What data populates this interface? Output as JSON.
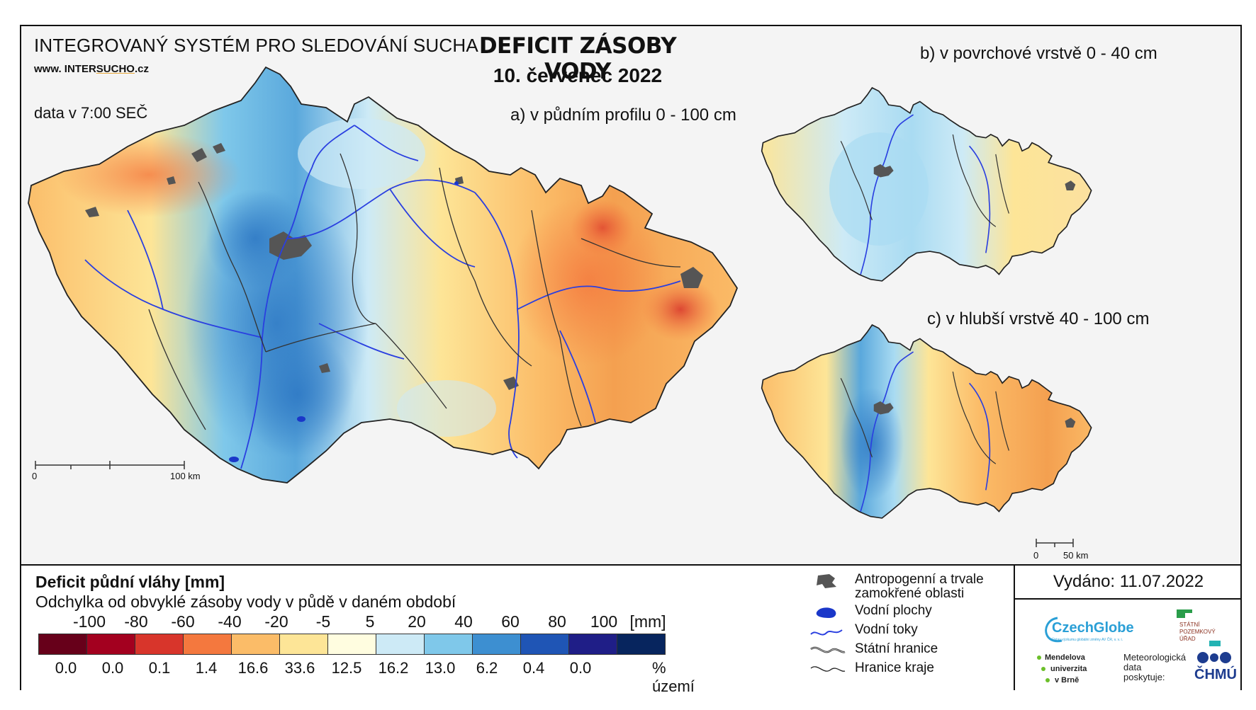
{
  "header": {
    "system_title": "INTEGROVANÝ SYSTÉM PRO SLEDOVÁNÍ SUCHA",
    "website_prefix": "www. INTER",
    "website_highlight": "SUCHO",
    "website_suffix": ".cz",
    "data_time": "data v 7:00 SEČ",
    "main_title": "DEFICIT ZÁSOBY VODY",
    "main_date": "10. červenec 2022"
  },
  "maps": {
    "a_title": "a) v půdním profilu 0 - 100 cm",
    "b_title": "b) v povrchové vrstvě 0 - 40 cm",
    "c_title": "c) v hlubší vrstvě 40 - 100 cm",
    "scale_main": {
      "start": "0",
      "end": "100 km"
    },
    "scale_small": {
      "start": "0",
      "end": "50 km"
    }
  },
  "legend": {
    "title": "Deficit půdní vláhy  [mm]",
    "subtitle": "Odchylka od obvyklé zásoby vody v půdě v daném období",
    "ticks": [
      "-100",
      "-80",
      "-60",
      "-40",
      "-20",
      "-5",
      "5",
      "20",
      "40",
      "60",
      "80",
      "100"
    ],
    "unit": "[mm]",
    "colors": [
      "#67001a",
      "#a3001f",
      "#d8352b",
      "#f4783e",
      "#fbbc68",
      "#fde597",
      "#fffde0",
      "#cdeaf6",
      "#7fc8ea",
      "#3d8fd1",
      "#1f55b5",
      "#1f1e87",
      "#07255e"
    ],
    "percent": [
      "0.0",
      "0.0",
      "0.1",
      "1.4",
      "16.6",
      "33.6",
      "12.5",
      "16.2",
      "13.0",
      "6.2",
      "0.4",
      "0.0"
    ],
    "percent_unit": "% území"
  },
  "symbols": {
    "items": [
      {
        "icon": "urban-area-icon",
        "label": "Antropogenní a trvale zamokřené oblasti"
      },
      {
        "icon": "water-body-icon",
        "label": "Vodní plochy"
      },
      {
        "icon": "river-icon",
        "label": "Vodní toky"
      },
      {
        "icon": "state-border-icon",
        "label": "Státní hranice"
      },
      {
        "icon": "region-border-icon",
        "label": "Hranice kraje"
      }
    ]
  },
  "footer": {
    "issued": "Vydáno: 11.07.2022",
    "czechglobe": "CzechGlobe",
    "czechglobe_sub": "Ústav výzkumu globální změny AV ČR, v. v. i.",
    "spu": [
      "STÁTNÍ",
      "POZEMKOVÝ",
      "ÚŘAD"
    ],
    "mendel": [
      "Mendelova",
      "univerzita",
      "v Brně"
    ],
    "met_data": [
      "Meteorologická",
      "data",
      "poskytuje:"
    ],
    "chmu": "ČHMÚ"
  }
}
